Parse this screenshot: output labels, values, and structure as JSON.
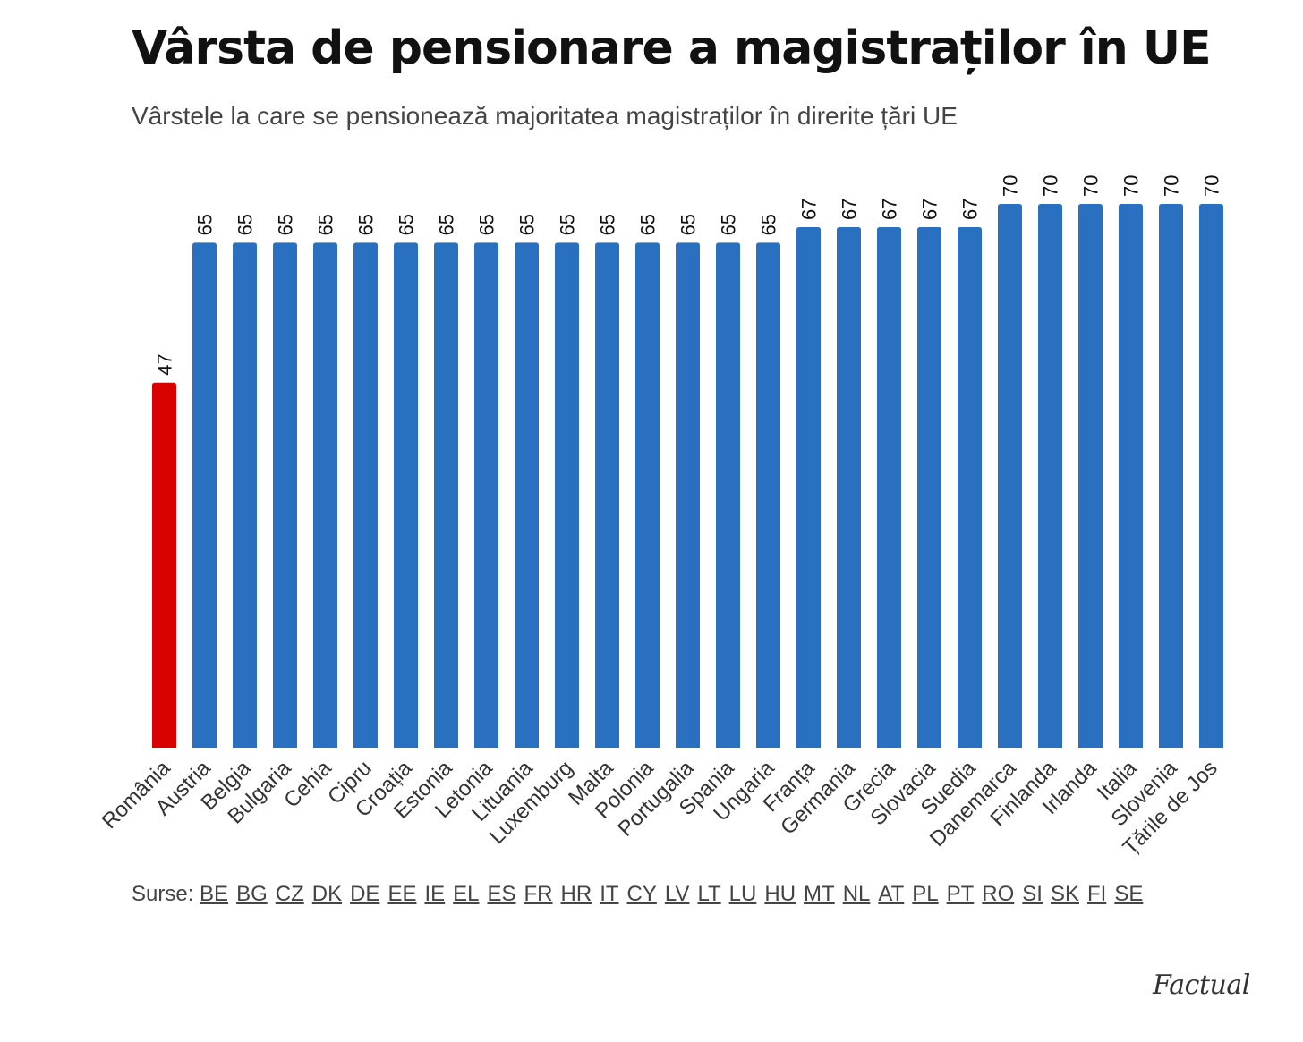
{
  "header": {
    "title": "Vârsta de pensionare a magistraților în UE",
    "subtitle": "Vârstele la care se pensionează majoritatea magistraților în direrite țări UE"
  },
  "chart_data": {
    "type": "bar",
    "title": "Vârsta de pensionare a magistraților în UE",
    "subtitle": "Vârstele la care se pensionează majoritatea magistraților în direrite țări UE",
    "categories": [
      "România",
      "Austria",
      "Belgia",
      "Bulgaria",
      "Cehia",
      "Cipru",
      "Croația",
      "Estonia",
      "Letonia",
      "Lituania",
      "Luxemburg",
      "Malta",
      "Polonia",
      "Portugalia",
      "Spania",
      "Ungaria",
      "Franța",
      "Germania",
      "Grecia",
      "Slovacia",
      "Suedia",
      "Danemarca",
      "Finlanda",
      "Irlanda",
      "Italia",
      "Slovenia",
      "Țările de Jos"
    ],
    "values": [
      47,
      65,
      65,
      65,
      65,
      65,
      65,
      65,
      65,
      65,
      65,
      65,
      65,
      65,
      65,
      65,
      67,
      67,
      67,
      67,
      67,
      70,
      70,
      70,
      70,
      70,
      70
    ],
    "highlight_color": "#d90000",
    "bar_color": "#2a70c1",
    "highlight_index": 0,
    "xlabel": "",
    "ylabel": "",
    "ylim": [
      0,
      70
    ],
    "grid": false
  },
  "sources": {
    "label": "Surse:",
    "links": [
      "BE",
      "BG",
      "CZ",
      "DK",
      "DE",
      "EE",
      "IE",
      "EL",
      "ES",
      "FR",
      "HR",
      "IT",
      "CY",
      "LV",
      "LT",
      "LU",
      "HU",
      "MT",
      "NL",
      "AT",
      "PL",
      "PT",
      "RO",
      "SI",
      "SK",
      "FI",
      "SE"
    ]
  },
  "brand": {
    "logo_text": "Factual"
  }
}
